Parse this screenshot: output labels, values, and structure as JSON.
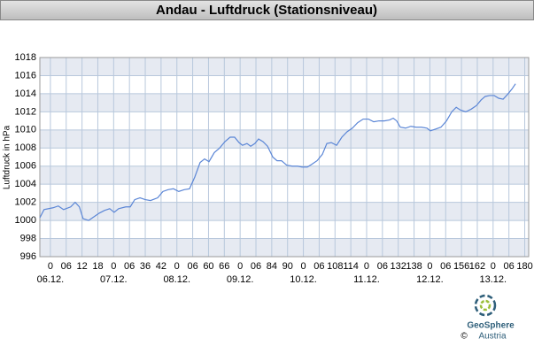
{
  "chart_data": {
    "type": "line",
    "title": "Andau - Luftdruck (Stationsniveau)",
    "y_label": "Luftdruck in hPa",
    "color": "#5b86d6",
    "grid": true,
    "x": [
      -4,
      -2.4,
      1,
      3,
      5,
      7.7,
      9.4,
      11,
      12.4,
      14.5,
      16.5,
      18.5,
      20.5,
      22.5,
      24.2,
      25.9,
      28.6,
      30.3,
      32,
      34,
      36,
      38,
      40.7,
      42.7,
      44.7,
      46.7,
      48.7,
      50.8,
      52.8,
      54.8,
      56.8,
      58.5,
      60.2,
      62.2,
      64.2,
      66.2,
      68.2,
      69.9,
      71.6,
      72.9,
      74.6,
      76,
      77.6,
      79,
      80.7,
      82.4,
      84.4,
      86,
      87.7,
      89.7,
      91.8,
      93.8,
      95.5,
      97.5,
      99.2,
      101.2,
      103.2,
      104.9,
      106.6,
      108.6,
      110.6,
      112.6,
      114.6,
      116.6,
      118.7,
      120.7,
      122.7,
      124.7,
      126.7,
      128.7,
      130.1,
      131.4,
      132.8,
      134.8,
      136.8,
      138.8,
      140.8,
      142.9,
      144.2,
      146.2,
      148.2,
      150.3,
      152.3,
      154,
      155.6,
      157.6,
      159.7,
      161.7,
      163.4,
      165,
      166.7,
      168.4,
      170.1,
      171.8,
      173.4,
      175.1,
      176.5
    ],
    "values": [
      1000.3,
      1001.2,
      1001.4,
      1001.6,
      1001.2,
      1001.5,
      1002.0,
      1001.5,
      1000.2,
      1000.0,
      1000.4,
      1000.8,
      1001.1,
      1001.3,
      1000.9,
      1001.3,
      1001.5,
      1001.5,
      1002.3,
      1002.5,
      1002.3,
      1002.2,
      1002.5,
      1003.2,
      1003.4,
      1003.5,
      1003.2,
      1003.4,
      1003.5,
      1004.8,
      1006.4,
      1006.8,
      1006.5,
      1007.5,
      1008.0,
      1008.7,
      1009.2,
      1009.2,
      1008.6,
      1008.3,
      1008.5,
      1008.2,
      1008.5,
      1009.0,
      1008.7,
      1008.2,
      1007.0,
      1006.6,
      1006.6,
      1006.1,
      1006.0,
      1006.0,
      1005.9,
      1005.9,
      1006.2,
      1006.6,
      1007.3,
      1008.5,
      1008.6,
      1008.3,
      1009.2,
      1009.8,
      1010.2,
      1010.8,
      1011.2,
      1011.2,
      1010.9,
      1011.0,
      1011.0,
      1011.1,
      1011.3,
      1011.0,
      1010.3,
      1010.2,
      1010.4,
      1010.3,
      1010.3,
      1010.2,
      1009.9,
      1010.1,
      1010.3,
      1011.0,
      1012.0,
      1012.5,
      1012.2,
      1012.0,
      1012.3,
      1012.7,
      1013.3,
      1013.7,
      1013.8,
      1013.8,
      1013.5,
      1013.4,
      1013.9,
      1014.5,
      1015.1
    ],
    "xlim": [
      -4,
      181.5
    ],
    "ylim": [
      996,
      1018
    ],
    "yticks": [
      996,
      998,
      1000,
      1002,
      1004,
      1006,
      1008,
      1010,
      1012,
      1014,
      1016,
      1018
    ],
    "xticks": [
      0,
      {
        "value": 6,
        "label": "06"
      },
      12,
      18,
      {
        "value": 24,
        "label": "0"
      },
      {
        "value": 30,
        "label": "06"
      },
      36,
      42,
      {
        "value": 48,
        "label": "0"
      },
      {
        "value": 54,
        "label": "06"
      },
      60,
      66,
      {
        "value": 72,
        "label": "0"
      },
      {
        "value": 78,
        "label": "06"
      },
      84,
      90,
      {
        "value": 96,
        "label": "0"
      },
      {
        "value": 102,
        "label": "06"
      },
      108,
      114,
      {
        "value": 120,
        "label": "0"
      },
      {
        "value": 126,
        "label": "06"
      },
      132,
      138,
      {
        "value": 144,
        "label": "0"
      },
      {
        "value": 150,
        "label": "06"
      },
      156,
      162,
      {
        "value": 168,
        "label": "0"
      },
      {
        "value": 174,
        "label": "06"
      },
      180
    ],
    "day_labels": [
      {
        "value": 0,
        "label": "06.12."
      },
      {
        "value": 24,
        "label": "07.12."
      },
      {
        "value": 48,
        "label": "08.12."
      },
      {
        "value": 72,
        "label": "09.12."
      },
      {
        "value": 96,
        "label": "10.12."
      },
      {
        "value": 120,
        "label": "11.12."
      },
      {
        "value": 144,
        "label": "12.12."
      },
      {
        "value": 168,
        "label": "13.12."
      }
    ]
  },
  "footer": {
    "logo_name": "GeoSphere",
    "logo_sub": "Austria",
    "copyright": "©"
  }
}
